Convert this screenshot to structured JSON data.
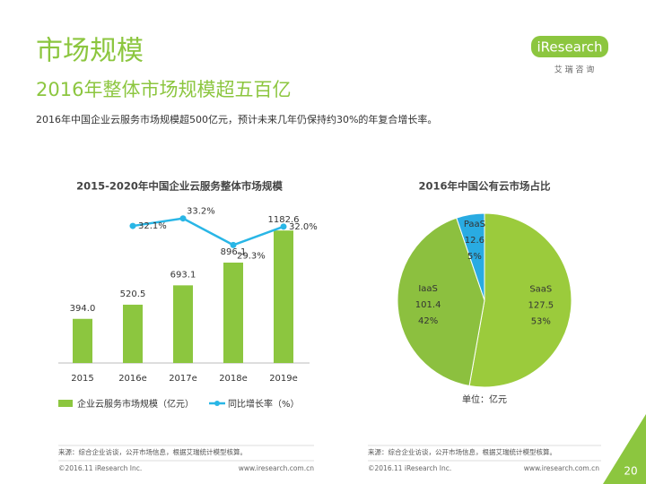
{
  "header": {
    "title": "市场规模",
    "subtitle": "2016年整体市场规模超五百亿",
    "description": "2016年中国企业云服务市场规模超500亿元，预计未来几年仍保持约30%的年复合增长率。"
  },
  "logo": {
    "brand": "iResearch",
    "tagline": "艾 瑞 咨 询"
  },
  "chart_data": [
    {
      "type": "bar_line",
      "title": "2015-2020年中国企业云服务整体市场规模",
      "categories": [
        "2015",
        "2016e",
        "2017e",
        "2018e",
        "2019e"
      ],
      "series": [
        {
          "name": "企业云服务市场规模（亿元）",
          "type": "bar",
          "color": "#8cc63f",
          "values": [
            394,
            520.5,
            693.1,
            896.1,
            1182.6
          ],
          "value_labels": [
            "394.0",
            "520.5",
            "693.1",
            "896.1",
            "1182.6"
          ]
        },
        {
          "name": "同比增长率（%）",
          "type": "line",
          "axis": "y2",
          "color": "#29b6e6",
          "values": [
            null,
            32.1,
            33.2,
            29.3,
            32.0
          ],
          "value_labels": [
            null,
            "32.1%",
            "33.2%",
            "29.3%",
            "32.0%"
          ]
        }
      ],
      "ylim": [
        0,
        1400
      ],
      "y2lim": [
        12,
        35
      ]
    },
    {
      "type": "pie",
      "title": "2016年中国公有云市场占比",
      "categories": [
        "SaaS",
        "IaaS",
        "PaaS"
      ],
      "values": [
        127.5,
        101.4,
        12.6
      ],
      "percent_labels": [
        "53%",
        "42%",
        "5%"
      ],
      "colors": [
        "#9bcb3c",
        "#8cc03f",
        "#29abe2"
      ],
      "unit_label": "单位：亿元"
    }
  ],
  "footer": {
    "left": {
      "source": "来源：综合企业访谈，公开市场信息，根据艾瑞统计模型核算。",
      "copyright": "©2016.11 iResearch Inc.",
      "url": "www.iresearch.com.cn"
    },
    "right": {
      "source": "来源：综合企业访谈，公开市场信息，根据艾瑞统计模型核算。",
      "copyright": "©2016.11 iResearch Inc.",
      "url": "www.iresearch.com.cn"
    },
    "page": 20
  }
}
